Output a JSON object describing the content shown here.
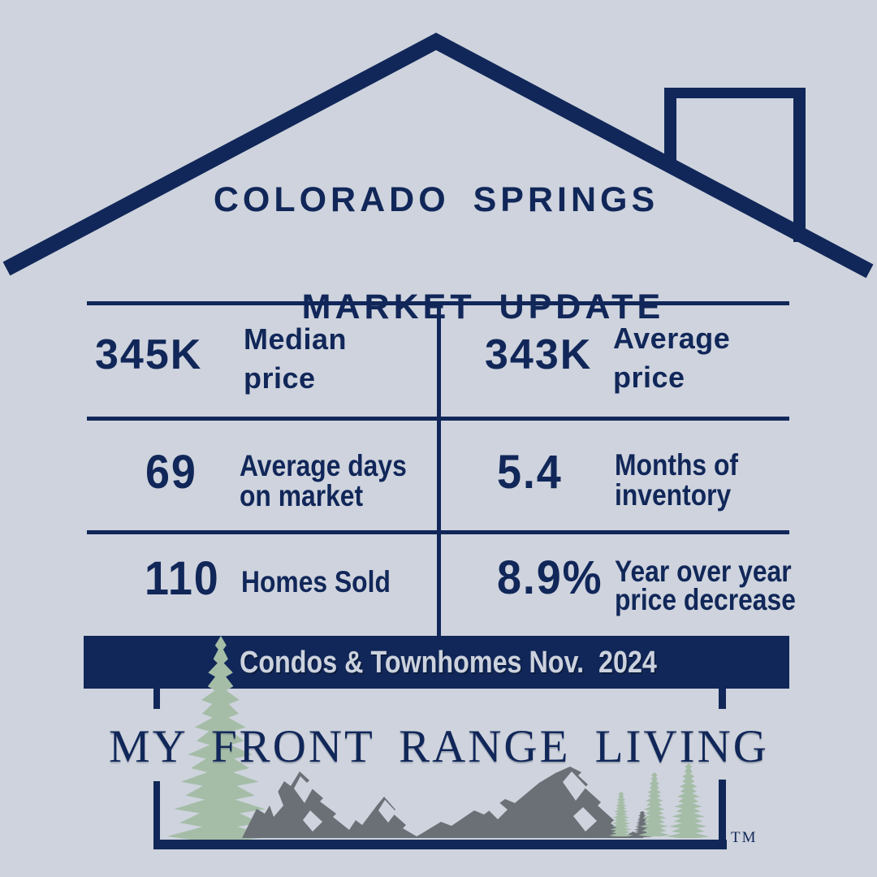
{
  "title": {
    "line1": "COLORADO SPRINGS",
    "line2": "MARKET UPDATE"
  },
  "stats_table": {
    "rows": [
      {
        "left": {
          "value": "345K",
          "label_lines": [
            "Median",
            "price"
          ]
        },
        "right": {
          "value": "343K",
          "label_lines": [
            "Average",
            "price"
          ]
        }
      },
      {
        "left": {
          "value": "69",
          "label_lines": [
            "Average days",
            "on market"
          ]
        },
        "right": {
          "value": "5.4",
          "label_lines": [
            "Months of",
            "inventory"
          ]
        }
      },
      {
        "left": {
          "value": "110",
          "label_lines": [
            "Homes Sold"
          ]
        },
        "right": {
          "value": "8.9%",
          "label_lines": [
            "Year over year",
            "price decrease"
          ]
        }
      }
    ]
  },
  "banner": {
    "text": "Condos & Townhomes Nov.  2024"
  },
  "logo": {
    "brand": "MY FRONT RANGE LIVING",
    "trademark": "TM"
  },
  "colors": {
    "background": "#ced3dd",
    "navy": "#112759",
    "banner_text": "#ccd2dd",
    "tree_green": "#a5bda7",
    "mountain_gray": "#6b7077"
  }
}
